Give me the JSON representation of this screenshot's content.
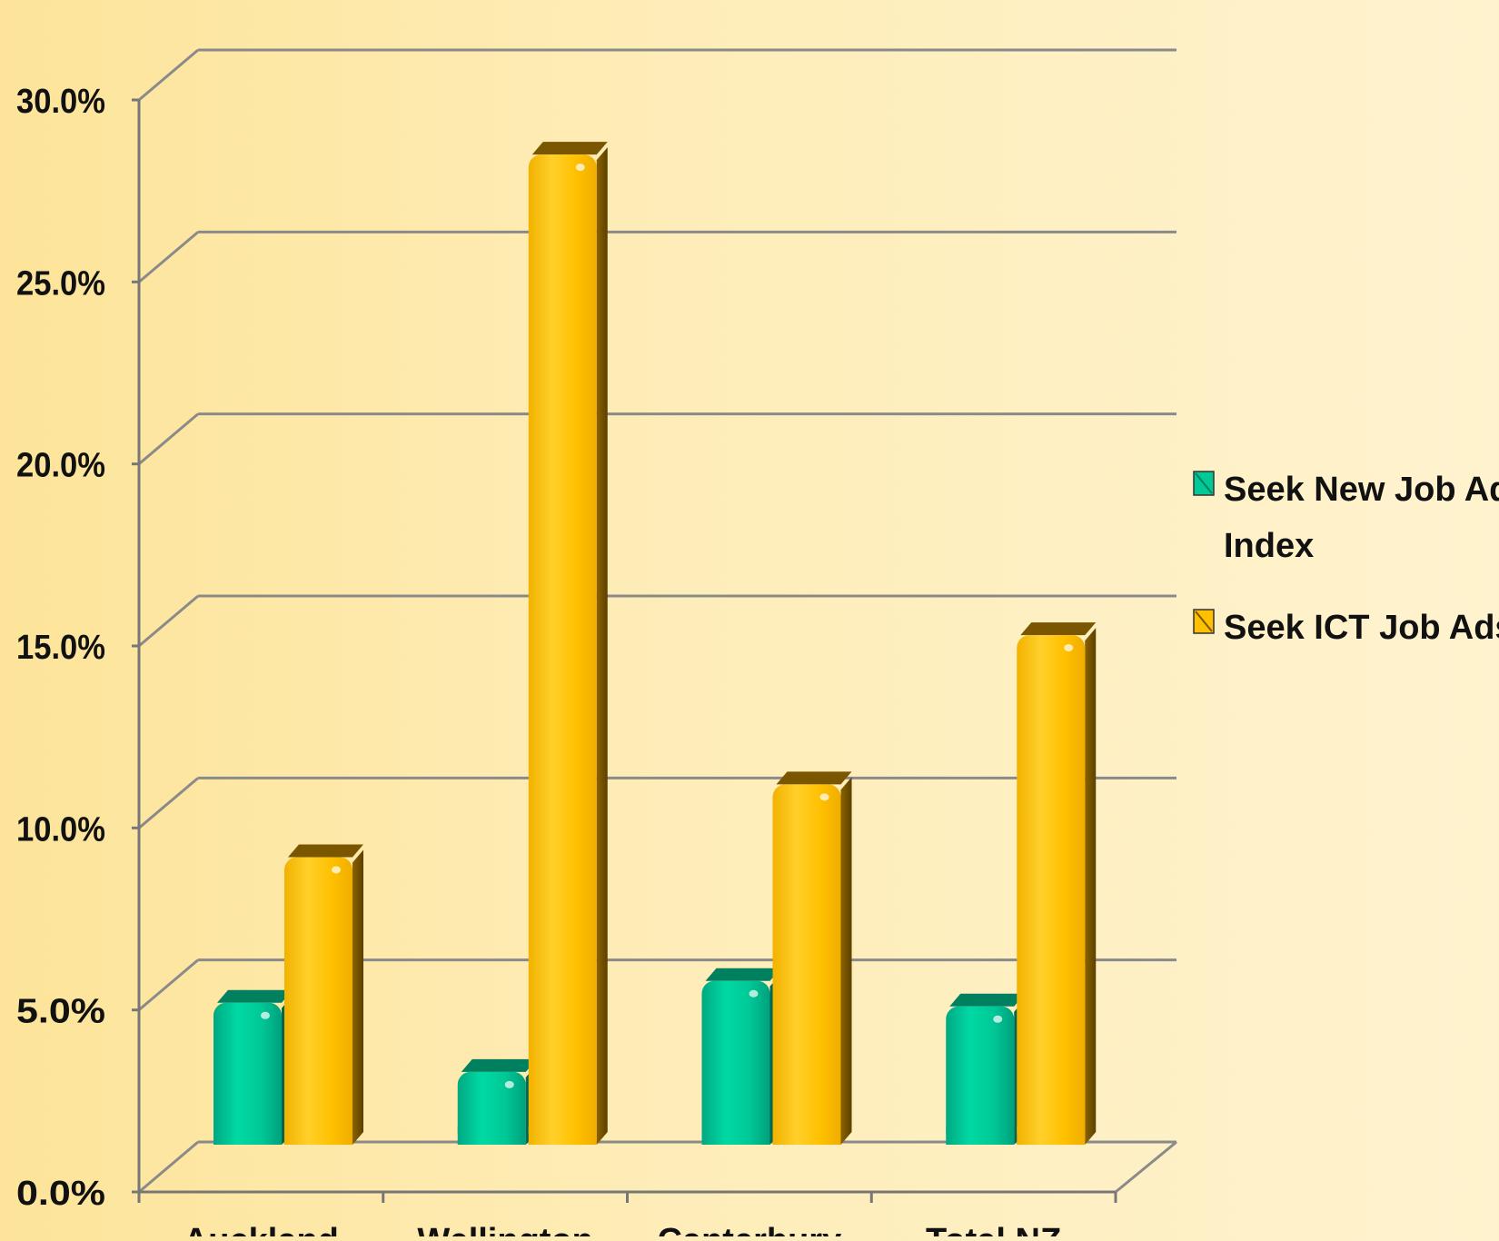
{
  "chart_data": {
    "type": "bar",
    "style": "3d-clustered-column",
    "categories": [
      "Auckland",
      "Wellington",
      "Canterbury",
      "Total NZ"
    ],
    "series": [
      {
        "name": "Seek New Job Ad Index",
        "values": [
          3.9,
          2.0,
          4.5,
          3.8
        ],
        "color": "#00c896"
      },
      {
        "name": "Seek ICT Job Ads",
        "values": [
          7.9,
          27.2,
          9.9,
          14.0
        ],
        "color": "#ffc000"
      }
    ],
    "ylim": [
      0,
      30
    ],
    "yticks": [
      "0.0%",
      "5.0%",
      "10.0%",
      "15.0%",
      "20.0%",
      "25.0%",
      "30.0%"
    ],
    "grid": true,
    "legend_position": "right",
    "colors": {
      "background": "#fde49a",
      "grid": "#8a8a8a",
      "axis": "#777777"
    }
  }
}
